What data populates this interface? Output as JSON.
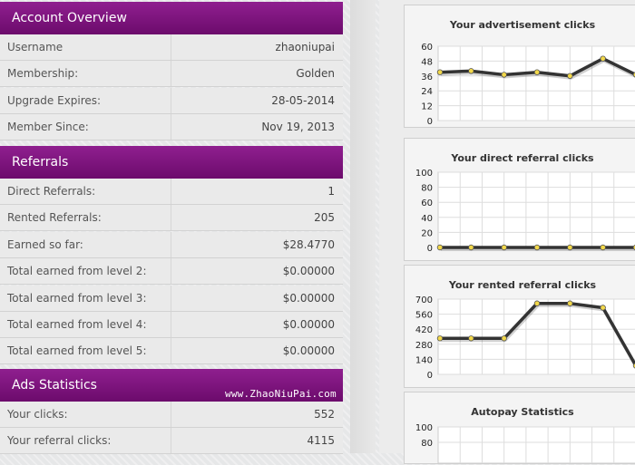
{
  "account_overview": {
    "title": "Account Overview",
    "rows": [
      {
        "label": "Username",
        "value": "zhaoniupai"
      },
      {
        "label": "Membership:",
        "value": "Golden"
      },
      {
        "label": "Upgrade Expires:",
        "value": "28-05-2014"
      },
      {
        "label": "Member Since:",
        "value": "Nov 19, 2013"
      }
    ]
  },
  "referrals": {
    "title": "Referrals",
    "rows": [
      {
        "label": "Direct Referrals:",
        "value": "1"
      },
      {
        "label": "Rented Referrals:",
        "value": "205"
      },
      {
        "label": "Earned so far:",
        "value": "$28.4770"
      },
      {
        "label": "Total earned from level 2:",
        "value": "$0.00000"
      },
      {
        "label": "Total earned from level 3:",
        "value": "$0.00000"
      },
      {
        "label": "Total earned from level 4:",
        "value": "$0.00000"
      },
      {
        "label": "Total earned from level 5:",
        "value": "$0.00000"
      }
    ]
  },
  "ads_statistics": {
    "title": "Ads Statistics",
    "rows": [
      {
        "label": "Your clicks:",
        "value": "552"
      },
      {
        "label": "Your referral clicks:",
        "value": "4115"
      }
    ]
  },
  "watermark": "www.ZhaoNiuPai.com",
  "colors": {
    "header": "#7a137a",
    "line": "#333333",
    "point": "#f2d84a"
  },
  "chart_data": [
    {
      "type": "line",
      "title": "Your advertisement clicks",
      "yticks": [
        0,
        12,
        24,
        36,
        48,
        60
      ],
      "ylim": [
        0,
        60
      ],
      "values": [
        39,
        40,
        37,
        39,
        36,
        50,
        37
      ],
      "grid": true
    },
    {
      "type": "line",
      "title": "Your direct referral clicks",
      "yticks": [
        0,
        20,
        40,
        60,
        80,
        100
      ],
      "ylim": [
        0,
        100
      ],
      "values": [
        0,
        0,
        0,
        0,
        0,
        0,
        0
      ],
      "grid": true
    },
    {
      "type": "line",
      "title": "Your rented referral clicks",
      "yticks": [
        0,
        140,
        280,
        420,
        560,
        700
      ],
      "ylim": [
        0,
        700
      ],
      "values": [
        335,
        335,
        335,
        660,
        660,
        620,
        80
      ],
      "grid": true
    },
    {
      "type": "line",
      "title": "Autopay Statistics",
      "yticks": [
        80,
        100
      ],
      "ylim": [
        0,
        100
      ],
      "values": [],
      "grid": true
    }
  ]
}
